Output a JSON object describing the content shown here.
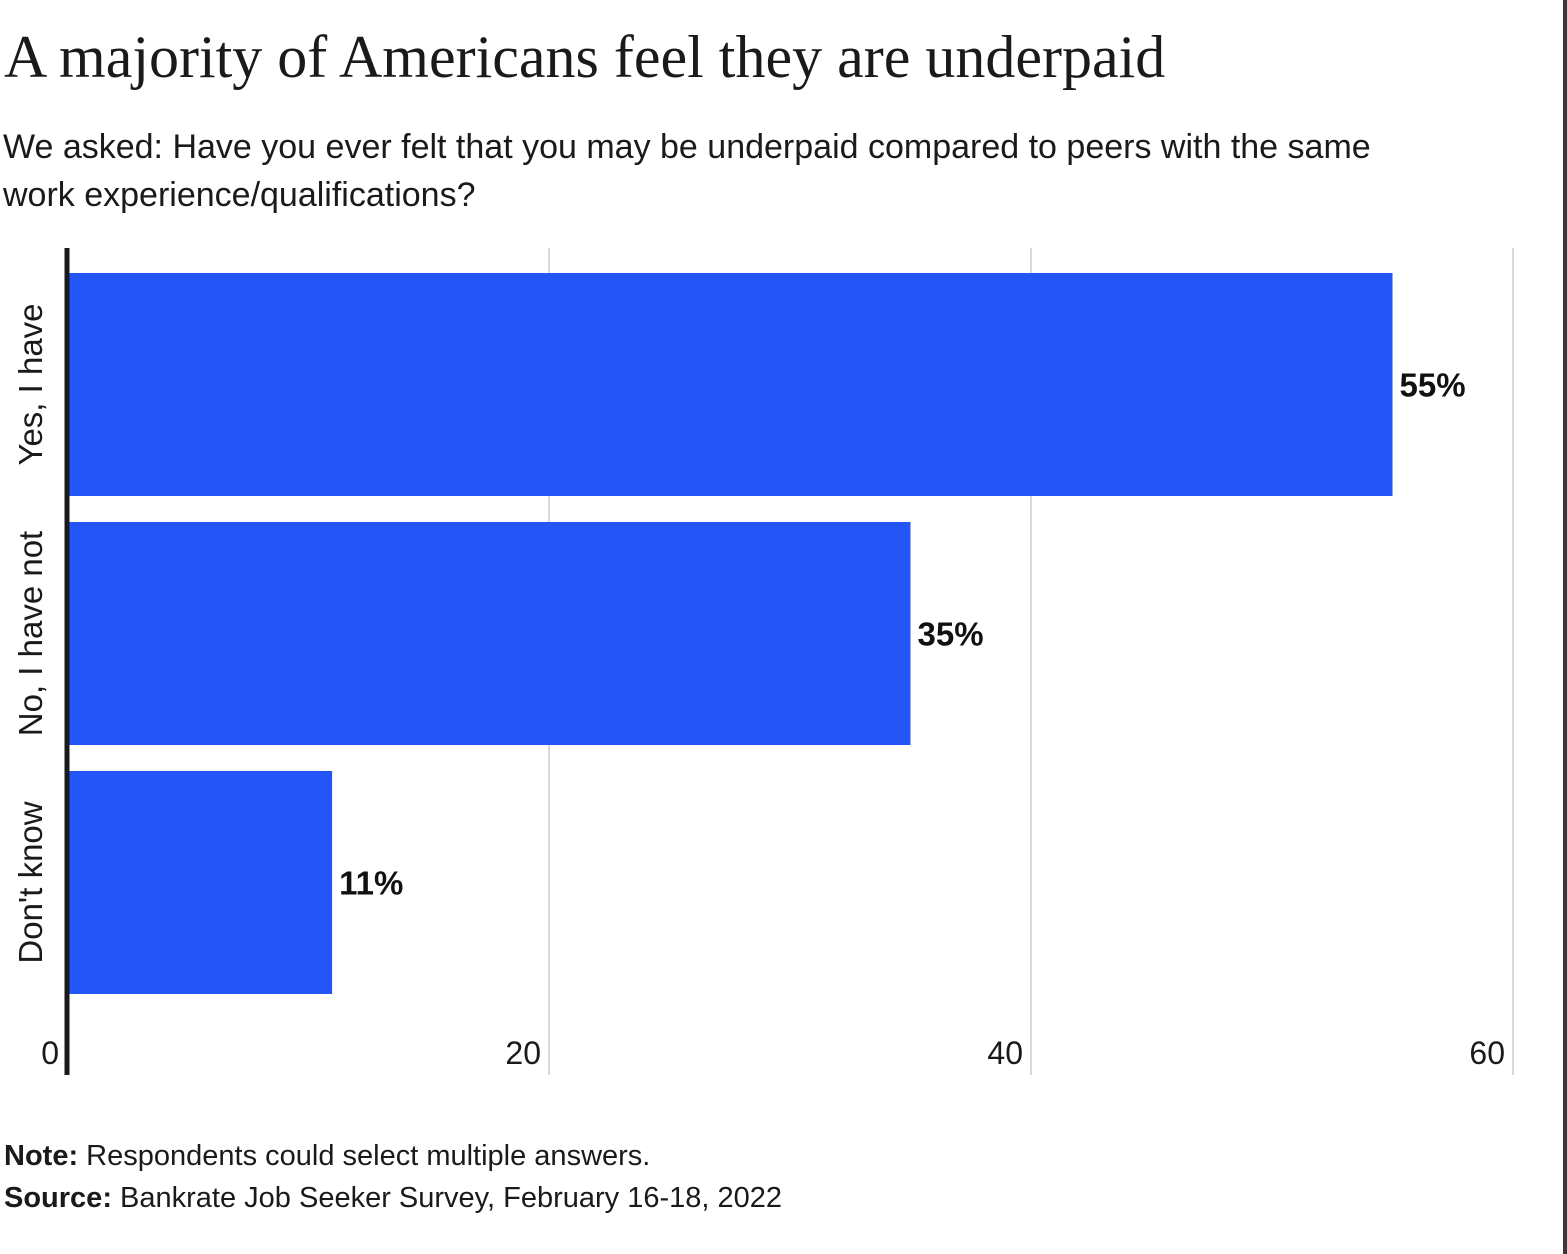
{
  "header": {
    "title": "A majority of Americans feel they are underpaid",
    "subtitle": "We asked: Have you ever felt that you may be underpaid compared to peers with the same work experience/qualifications?"
  },
  "footer": {
    "note_label": "Note:",
    "note_text": " Respondents could select multiple answers.",
    "source_label": "Source:",
    "source_text": " Bankrate Job Seeker Survey, February 16-18, 2022"
  },
  "colors": {
    "bar": "#2456f7",
    "axis": "#1a1a1a",
    "grid": "#d9d9d9"
  },
  "chart_data": {
    "type": "bar",
    "orientation": "horizontal",
    "title": "A majority of Americans feel they are underpaid",
    "subtitle": "We asked: Have you ever felt that you may be underpaid compared to peers with the same work experience/qualifications?",
    "categories": [
      "Yes, I have",
      "No, I have not",
      "Don't know"
    ],
    "values": [
      55,
      35,
      11
    ],
    "value_labels": [
      "55%",
      "35%",
      "11%"
    ],
    "xlabel": "",
    "ylabel": "",
    "xlim": [
      0,
      60
    ],
    "xticks": [
      0,
      20,
      40,
      60
    ],
    "xtick_labels": [
      "0",
      "20",
      "40",
      "60"
    ],
    "grid": true,
    "legend": "none"
  }
}
